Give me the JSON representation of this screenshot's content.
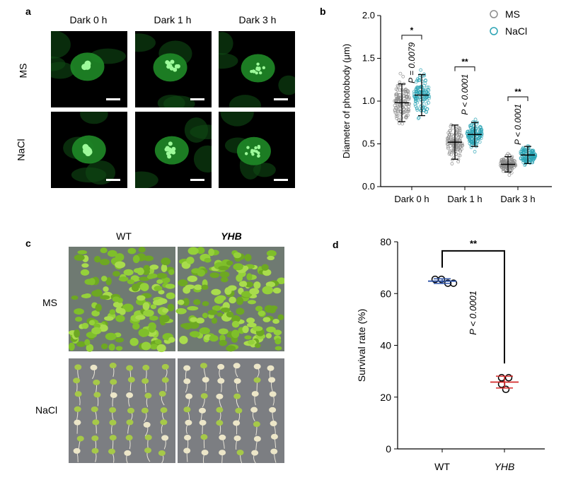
{
  "panels": {
    "a": {
      "label": "a",
      "columns": [
        "Dark 0 h",
        "Dark 1 h",
        "Dark 3 h"
      ],
      "rows": [
        "MS",
        "NaCl"
      ]
    },
    "b": {
      "label": "b"
    },
    "c": {
      "label": "c",
      "columns": [
        "WT",
        "YHB"
      ],
      "rows": [
        "MS",
        "NaCl"
      ]
    },
    "d": {
      "label": "d"
    }
  },
  "colors": {
    "ms": "#8c8c8c",
    "nacl": "#2aa3b4",
    "wt": "#2f54a8",
    "yhb": "#d42a2a",
    "gfp": "#35d33a"
  },
  "chart_data": [
    {
      "type": "scatter",
      "panel": "b",
      "ylabel": "Diameter of photobody (μm)",
      "xlabel": "",
      "categories": [
        "Dark 0 h",
        "Dark 1 h",
        "Dark 3 h"
      ],
      "ylim": [
        0,
        2.0
      ],
      "yticks": [
        "0.0",
        "0.5",
        "1.0",
        "1.5",
        "2.0"
      ],
      "legend": "top-right",
      "series": [
        {
          "name": "MS",
          "mean": [
            0.98,
            0.52,
            0.26
          ],
          "sd": [
            0.22,
            0.2,
            0.09
          ]
        },
        {
          "name": "NaCl",
          "mean": [
            1.07,
            0.61,
            0.37
          ],
          "sd": [
            0.24,
            0.14,
            0.1
          ]
        }
      ],
      "annotations": [
        {
          "category": "Dark 0 h",
          "stars": "*",
          "p": "P = 0.0079"
        },
        {
          "category": "Dark 1 h",
          "stars": "**",
          "p": "P < 0.0001"
        },
        {
          "category": "Dark 3 h",
          "stars": "**",
          "p": "P < 0.0001"
        }
      ]
    },
    {
      "type": "scatter",
      "panel": "d",
      "ylabel": "Survival rate (%)",
      "xlabel": "",
      "categories": [
        "WT",
        "YHB"
      ],
      "ylim": [
        0,
        80
      ],
      "yticks": [
        "0",
        "20",
        "40",
        "60",
        "80"
      ],
      "points": [
        [
          65.5,
          65.5,
          64.0,
          64.0
        ],
        [
          27.5,
          27.5,
          25.0,
          23.0
        ]
      ],
      "mean": [
        64.8,
        25.8
      ],
      "sd": [
        0.9,
        2.3
      ],
      "annotations": [
        {
          "stars": "**",
          "p": "P < 0.0001"
        }
      ]
    }
  ]
}
